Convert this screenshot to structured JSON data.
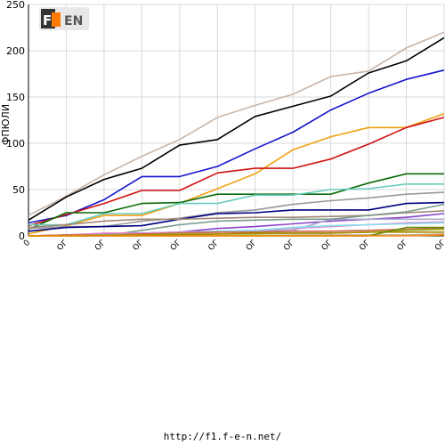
{
  "chart_data": {
    "type": "line",
    "ylabel": "ФПЮЛИ",
    "ylim": [
      0,
      250
    ],
    "yticks": [
      0,
      50,
      100,
      150,
      200,
      250
    ],
    "xticks": [
      "0",
      "ОГ",
      "ОГ",
      "ОГ",
      "ОГ",
      "ОГ",
      "ОГ",
      "ОГ",
      "ОГ",
      "ОГ",
      "ОГ",
      "ОГ"
    ],
    "grid": true,
    "series": [
      {
        "color": "#c8b5a8",
        "values": [
          22,
          43,
          66,
          86,
          104,
          128,
          141,
          153,
          172,
          178,
          203,
          220
        ]
      },
      {
        "color": "#000000",
        "values": [
          17,
          42,
          61,
          73,
          98,
          104,
          129,
          140,
          151,
          176,
          189,
          214
        ]
      },
      {
        "color": "#1414cc",
        "values": [
          14,
          22,
          39,
          64,
          64,
          75,
          94,
          112,
          136,
          154,
          169,
          179
        ]
      },
      {
        "color": "#f0a010",
        "values": [
          2,
          11,
          22,
          22,
          35,
          51,
          67,
          93,
          107,
          117,
          117,
          132
        ]
      },
      {
        "color": "#d01010",
        "values": [
          11,
          23,
          35,
          49,
          49,
          68,
          73,
          73,
          83,
          99,
          117,
          128
        ]
      },
      {
        "color": "#0a6a0a",
        "values": [
          7,
          25,
          25,
          35,
          36,
          45,
          45,
          45,
          45,
          57,
          67,
          67
        ]
      },
      {
        "color": "#66ccbb",
        "values": [
          12,
          12,
          24,
          24,
          35,
          35,
          44,
          44,
          50,
          51,
          56,
          56
        ]
      },
      {
        "color": "#999999",
        "values": [
          8,
          10,
          10,
          16,
          19,
          25,
          28,
          34,
          38,
          41,
          45,
          47
        ]
      },
      {
        "color": "#000080",
        "values": [
          5,
          9,
          10,
          11,
          18,
          24,
          25,
          28,
          28,
          28,
          35,
          36
        ]
      },
      {
        "color": "#a08878",
        "values": [
          9,
          12,
          16,
          18,
          18,
          19,
          20,
          20,
          21,
          22,
          25,
          27
        ]
      },
      {
        "color": "#8844cc",
        "values": [
          0,
          1,
          2,
          3,
          4,
          8,
          10,
          13,
          16,
          18,
          20,
          24
        ]
      },
      {
        "color": "#aaaacc",
        "values": [
          0,
          1,
          1,
          2,
          4,
          4,
          5,
          6,
          18,
          18,
          18,
          18
        ]
      },
      {
        "color": "#7a9a8a",
        "values": [
          0,
          0,
          0,
          6,
          12,
          16,
          17,
          18,
          18,
          22,
          26,
          34
        ]
      },
      {
        "color": "#dd88cc",
        "values": [
          0,
          1,
          3,
          3,
          4,
          5,
          6,
          8,
          10,
          12,
          14,
          15
        ]
      },
      {
        "color": "#88ddee",
        "values": [
          0,
          0,
          1,
          2,
          3,
          5,
          6,
          9,
          11,
          12,
          13,
          14
        ]
      },
      {
        "color": "#cc6644",
        "values": [
          0,
          1,
          1,
          2,
          3,
          4,
          4,
          5,
          5,
          6,
          7,
          8
        ]
      },
      {
        "color": "#99aa22",
        "values": [
          0,
          0,
          1,
          1,
          2,
          2,
          2,
          3,
          3,
          4,
          6,
          7
        ]
      },
      {
        "color": "#aa8800",
        "values": [
          0,
          0,
          0,
          1,
          1,
          2,
          3,
          3,
          3,
          4,
          4,
          4
        ]
      },
      {
        "color": "#b8a898",
        "values": [
          0,
          0,
          0,
          0,
          0,
          0,
          0,
          1,
          1,
          1,
          1,
          2
        ]
      },
      {
        "color": "#668800",
        "values": [
          0,
          0,
          0,
          0,
          0,
          0,
          0,
          0,
          0,
          0,
          9,
          9
        ]
      },
      {
        "color": "#ff8800",
        "values": [
          0,
          0,
          0,
          0,
          0,
          0,
          0,
          0,
          0,
          0,
          0,
          1
        ]
      }
    ]
  },
  "logo": {
    "text": "F1EN"
  },
  "footer": {
    "url": "http://f1.f-e-n.net/"
  }
}
